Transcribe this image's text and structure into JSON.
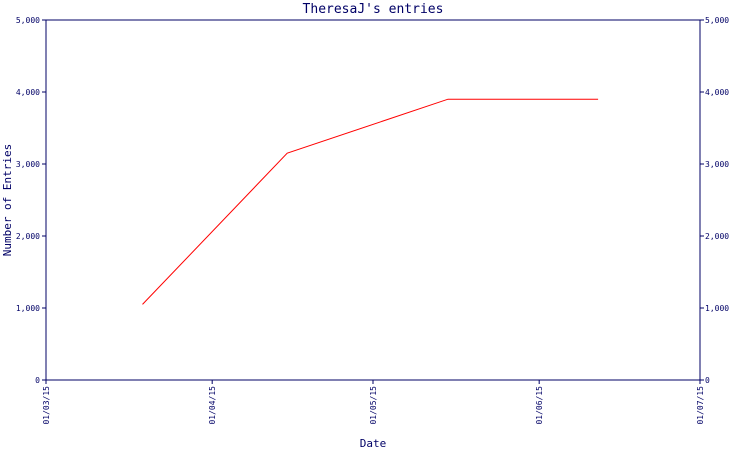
{
  "chart_data": {
    "type": "line",
    "title": "TheresaJ's entries",
    "xlabel": "Date",
    "ylabel": "Number of Entries",
    "ylim": [
      0,
      5000
    ],
    "y_ticks": [
      0,
      1000,
      2000,
      3000,
      4000,
      5000
    ],
    "y_tick_labels": [
      "0",
      "1,000",
      "2,000",
      "3,000",
      "4,000",
      "5,000"
    ],
    "right_axis_tick_labels": [
      "0",
      "1,000",
      "2,000",
      "3,000",
      "4,000",
      "5,000"
    ],
    "x_ticks": [
      "2015-03-01",
      "2015-04-01",
      "2015-05-01",
      "2015-06-01",
      "2015-07-01"
    ],
    "x_tick_labels": [
      "01/03/15",
      "01/04/15",
      "01/05/15",
      "01/06/15",
      "01/07/15"
    ],
    "xlim": [
      "2015-03-01",
      "2015-07-01"
    ],
    "grid": false,
    "series": [
      {
        "color": "#ff0000",
        "points": [
          {
            "x": "2015-03-19",
            "y": 1050
          },
          {
            "x": "2015-04-15",
            "y": 3150
          },
          {
            "x": "2015-05-15",
            "y": 3900
          },
          {
            "x": "2015-06-12",
            "y": 3900
          }
        ]
      }
    ]
  }
}
